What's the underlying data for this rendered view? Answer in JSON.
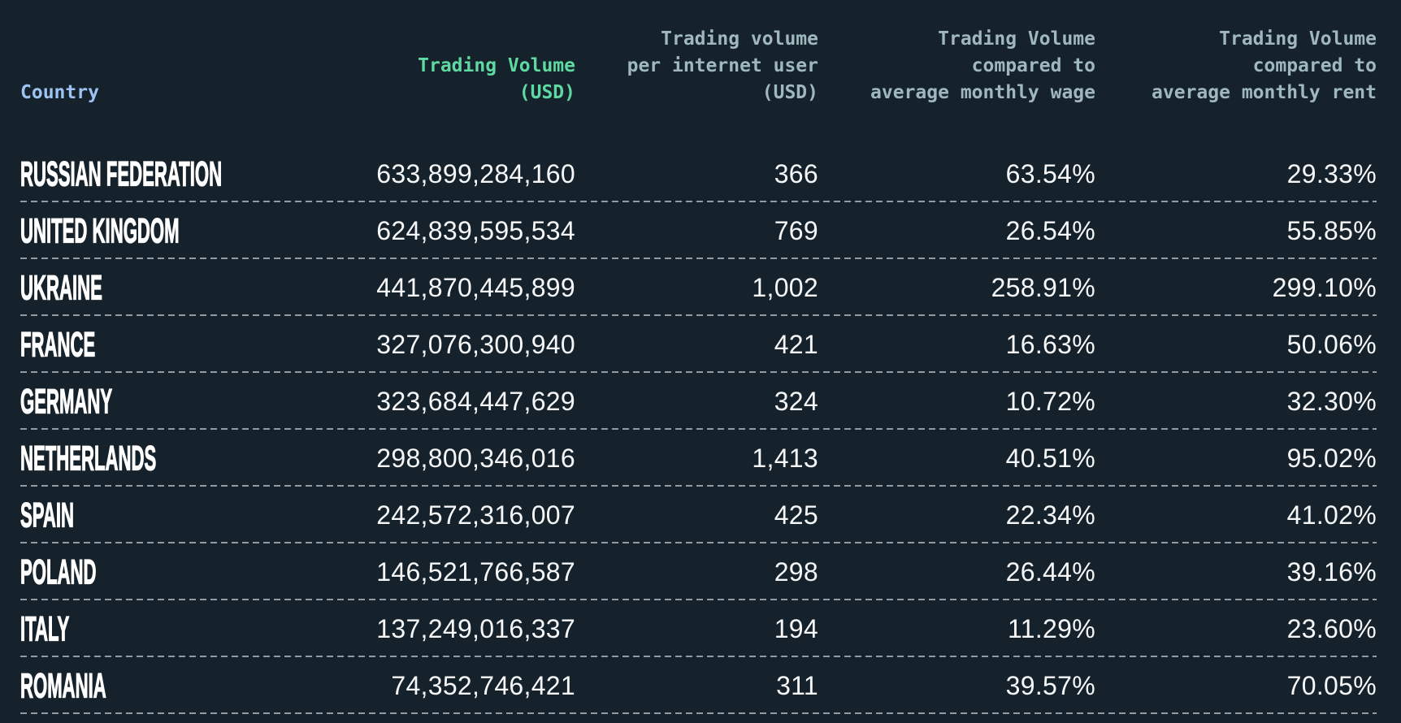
{
  "colors": {
    "background": "#16222b",
    "header_country": "#9dc3f2",
    "header_volume": "#5ed9a2",
    "header_muted": "#9fb8bd",
    "row_text": "#ffffff",
    "divider": "#919ba1"
  },
  "header": {
    "country": "Country",
    "volume": [
      "Trading Volume",
      "(USD)"
    ],
    "per_user": [
      "Trading volume",
      "per internet user",
      "(USD)"
    ],
    "wage": [
      "Trading Volume",
      "compared to",
      "average monthly wage"
    ],
    "rent": [
      "Trading Volume",
      "compared to",
      "average monthly rent"
    ]
  },
  "rows": [
    {
      "country": "Russian Federation",
      "volume": "633,899,284,160",
      "per_user": "366",
      "wage": "63.54%",
      "rent": "29.33%"
    },
    {
      "country": "United Kingdom",
      "volume": "624,839,595,534",
      "per_user": "769",
      "wage": "26.54%",
      "rent": "55.85%"
    },
    {
      "country": "Ukraine",
      "volume": "441,870,445,899",
      "per_user": "1,002",
      "wage": "258.91%",
      "rent": "299.10%"
    },
    {
      "country": "France",
      "volume": "327,076,300,940",
      "per_user": "421",
      "wage": "16.63%",
      "rent": "50.06%"
    },
    {
      "country": "Germany",
      "volume": "323,684,447,629",
      "per_user": "324",
      "wage": "10.72%",
      "rent": "32.30%"
    },
    {
      "country": "Netherlands",
      "volume": "298,800,346,016",
      "per_user": "1,413",
      "wage": "40.51%",
      "rent": "95.02%"
    },
    {
      "country": "Spain",
      "volume": "242,572,316,007",
      "per_user": "425",
      "wage": "22.34%",
      "rent": "41.02%"
    },
    {
      "country": "Poland",
      "volume": "146,521,766,587",
      "per_user": "298",
      "wage": "26.44%",
      "rent": "39.16%"
    },
    {
      "country": "Italy",
      "volume": "137,249,016,337",
      "per_user": "194",
      "wage": "11.29%",
      "rent": "23.60%"
    },
    {
      "country": "Romania",
      "volume": "74,352,746,421",
      "per_user": "311",
      "wage": "39.57%",
      "rent": "70.05%"
    }
  ],
  "chart_data": {
    "type": "table",
    "columns": [
      "Country",
      "Trading Volume (USD)",
      "Trading volume per internet user (USD)",
      "Trading Volume compared to average monthly wage",
      "Trading Volume compared to average monthly rent"
    ],
    "rows": [
      [
        "Russian Federation",
        633899284160,
        366,
        63.54,
        29.33
      ],
      [
        "United Kingdom",
        624839595534,
        769,
        26.54,
        55.85
      ],
      [
        "Ukraine",
        441870445899,
        1002,
        258.91,
        299.1
      ],
      [
        "France",
        327076300940,
        421,
        16.63,
        50.06
      ],
      [
        "Germany",
        323684447629,
        324,
        10.72,
        32.3
      ],
      [
        "Netherlands",
        298800346016,
        1413,
        40.51,
        95.02
      ],
      [
        "Spain",
        242572316007,
        425,
        22.34,
        41.02
      ],
      [
        "Poland",
        146521766587,
        298,
        26.44,
        39.16
      ],
      [
        "Italy",
        137249016337,
        194,
        11.29,
        23.6
      ],
      [
        "Romania",
        74352746421,
        311,
        39.57,
        70.05
      ]
    ],
    "notes": "wage and rent columns are percentages; sorted by Trading Volume (USD) descending",
    "grid": "dashed horizontal row separators",
    "legend_position": "none"
  }
}
